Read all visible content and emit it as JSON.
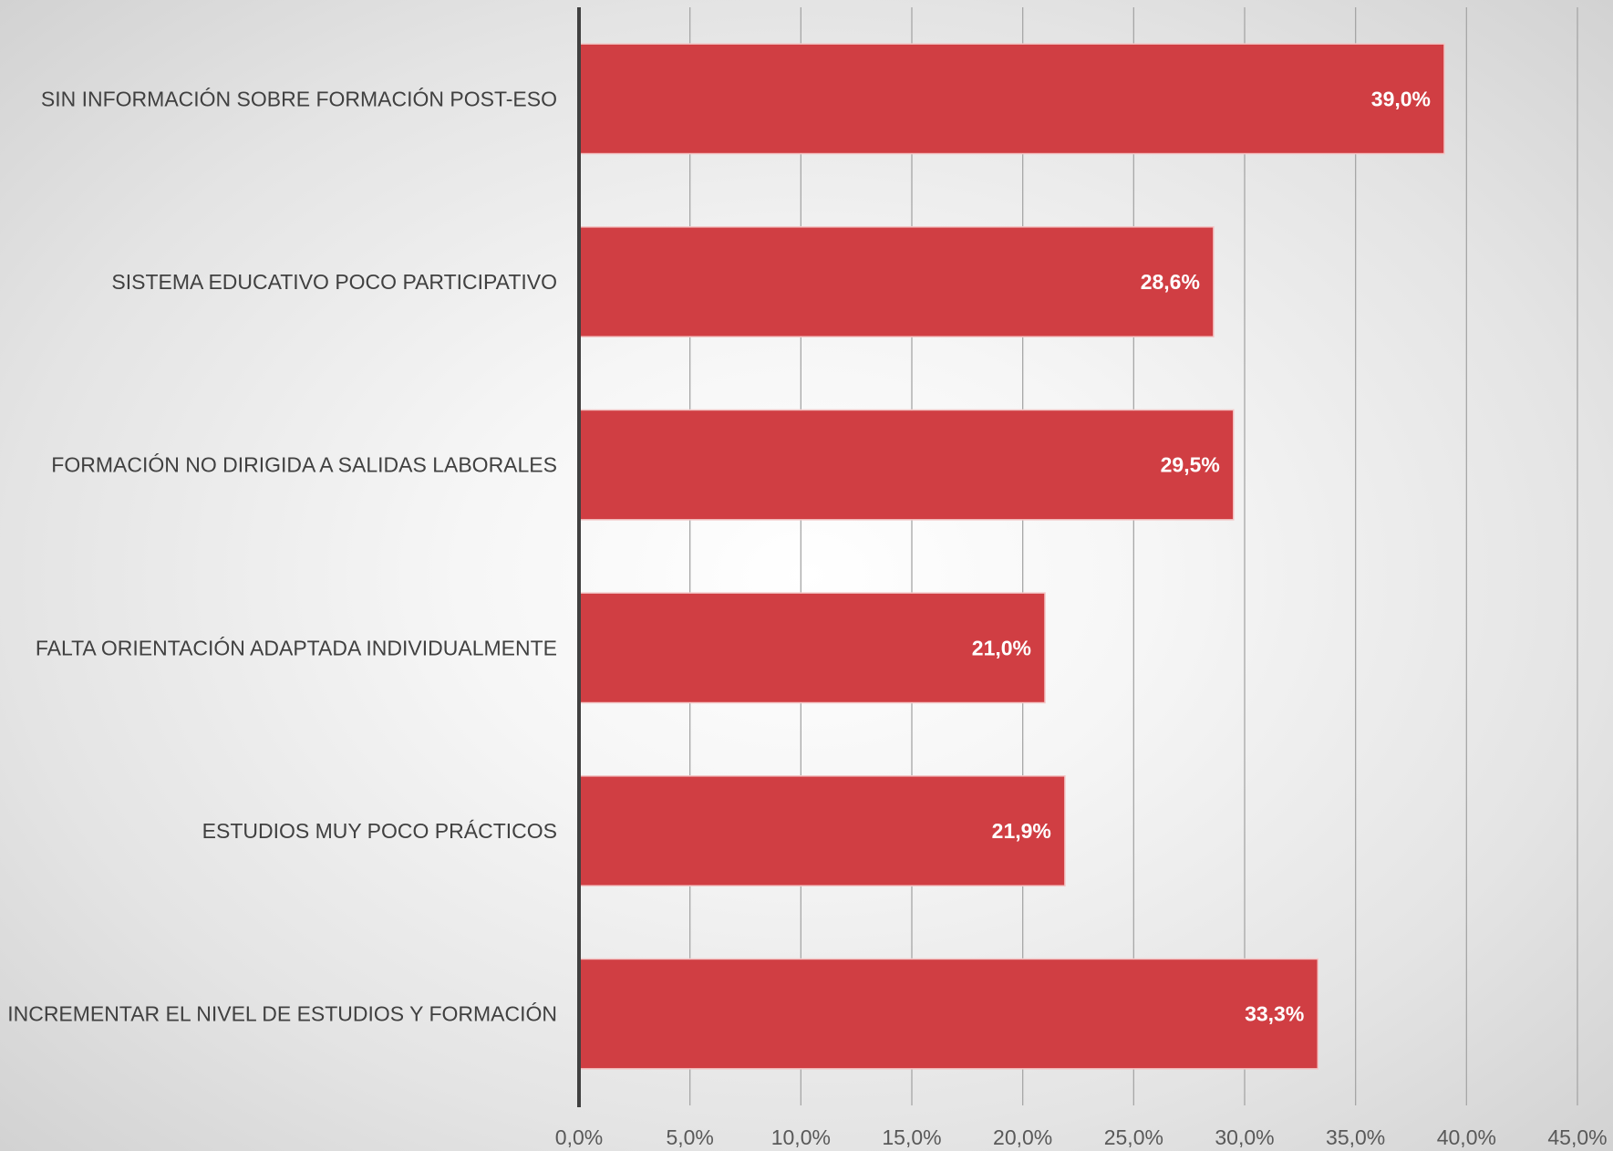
{
  "chart_data": {
    "type": "bar",
    "orientation": "horizontal",
    "categories": [
      "SIN INFORMACIÓN SOBRE FORMACIÓN POST-ESO",
      "SISTEMA EDUCATIVO POCO PARTICIPATIVO",
      "FORMACIÓN NO DIRIGIDA A SALIDAS LABORALES",
      "FALTA ORIENTACIÓN ADAPTADA INDIVIDUALMENTE",
      "ESTUDIOS MUY POCO PRÁCTICOS",
      "INCREMENTAR EL NIVEL DE ESTUDIOS Y FORMACIÓN"
    ],
    "values": [
      39.0,
      28.6,
      29.5,
      21.0,
      21.9,
      33.3
    ],
    "data_labels": [
      "39,0%",
      "28,6%",
      "29,5%",
      "21,0%",
      "21,9%",
      "33,3%"
    ],
    "xlim": [
      0,
      45
    ],
    "x_ticks": [
      0,
      5,
      10,
      15,
      20,
      25,
      30,
      35,
      40,
      45
    ],
    "x_tick_labels": [
      "0,0%",
      "5,0%",
      "10,0%",
      "15,0%",
      "20,0%",
      "25,0%",
      "30,0%",
      "35,0%",
      "40,0%",
      "45,0%"
    ],
    "title": "",
    "xlabel": "",
    "ylabel": "",
    "grid": "vertical",
    "legend": "none",
    "bar_color": "#d03e43",
    "axis_color": "#404040",
    "grid_color": "#a6a6a6"
  }
}
